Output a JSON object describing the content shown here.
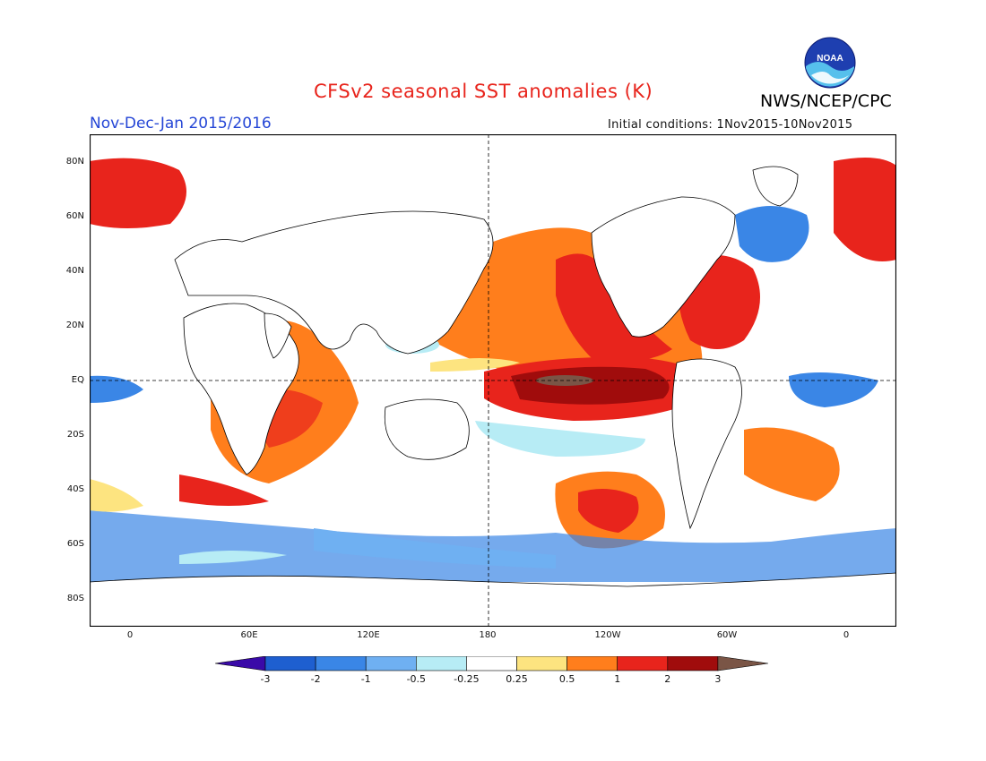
{
  "header": {
    "title": "CFSv2 seasonal SST anomalies (K)",
    "organization": "NWS/NCEP/CPC",
    "period": "Nov-Dec-Jan 2015/2016",
    "initial_conditions": "Initial conditions: 1Nov2015-10Nov2015",
    "logo_text": "NOAA"
  },
  "map": {
    "projection": "cylindrical equidistant",
    "lon_range": [
      -20,
      380
    ],
    "lat_range": [
      -90,
      90
    ],
    "reference_lines": {
      "equator": true,
      "dateline_180": true
    },
    "lat_ticks": [
      "80N",
      "60N",
      "40N",
      "20N",
      "EQ",
      "20S",
      "40S",
      "60S",
      "80S"
    ],
    "lon_ticks": [
      "0",
      "60E",
      "120E",
      "180",
      "120W",
      "60W",
      "0"
    ]
  },
  "colorbar": {
    "tick_labels": [
      "-3",
      "-2",
      "-1",
      "-0.5",
      "-0.25",
      "0.25",
      "0.5",
      "1",
      "2",
      "3"
    ],
    "colors": [
      "#3a0aa8",
      "#1e5fd0",
      "#3a86e6",
      "#6fb0f2",
      "#b7ecf5",
      "#ffffff",
      "#fde480",
      "#ff7e1c",
      "#e8241c",
      "#a00c0c",
      "#7a5546"
    ]
  }
}
